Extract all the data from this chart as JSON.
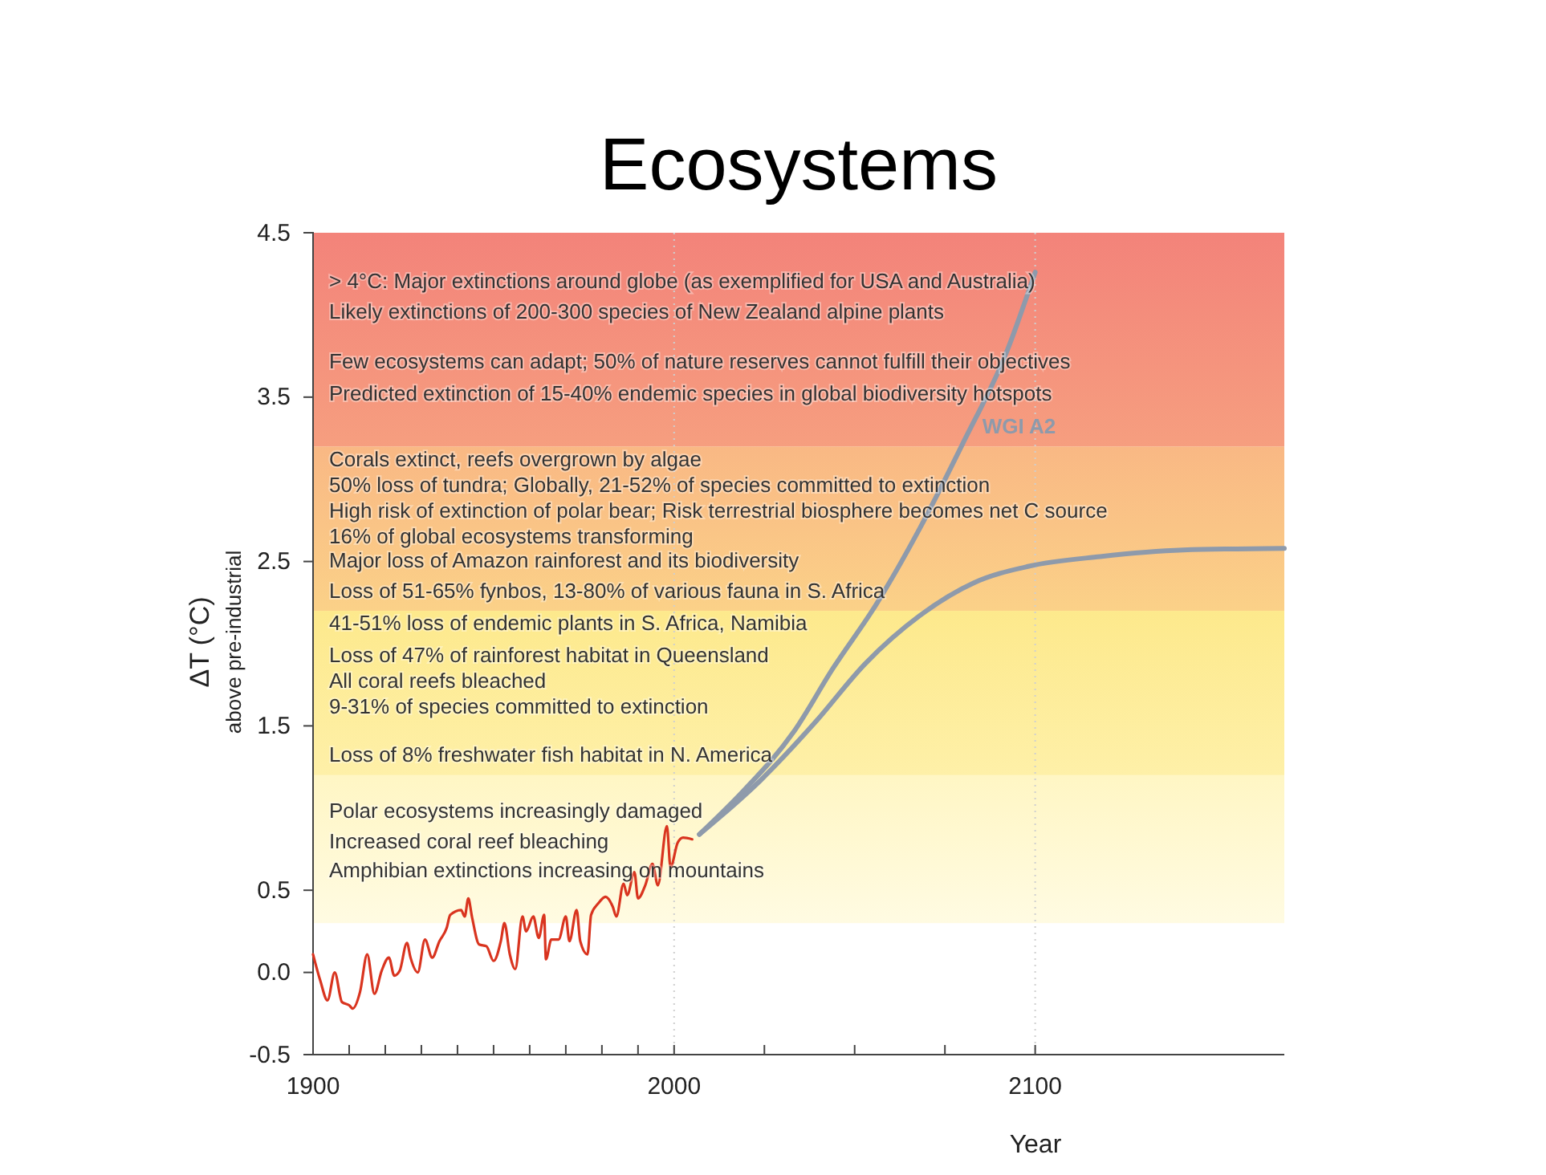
{
  "chart_data": {
    "type": "line",
    "title": "Ecosystems",
    "xlabel": "Year",
    "ylabel": "ΔT (°C)\nabove pre-industrial",
    "xlim": [
      1900,
      2169
    ],
    "ylim": [
      -0.5,
      4.5
    ],
    "xticks": [
      1900,
      {
        "value": 1910,
        "label": null
      },
      {
        "value": 1920,
        "label": null
      },
      {
        "value": 1930,
        "label": null
      },
      {
        "value": 1940,
        "label": null
      },
      {
        "value": 1950,
        "label": null
      },
      {
        "value": 1960,
        "label": null
      },
      {
        "value": 1970,
        "label": null
      },
      {
        "value": 1980,
        "label": null
      },
      {
        "value": 1990,
        "label": null
      },
      2000,
      {
        "value": 2025,
        "label": null
      },
      {
        "value": 2050,
        "label": null
      },
      {
        "value": 2075,
        "label": null
      },
      2100
    ],
    "yticks": [
      -0.5,
      {
        "value": 0,
        "label": "0.0"
      },
      0.5,
      1.5,
      2.5,
      3.5,
      4.5
    ],
    "bands": [
      {
        "axis": "y",
        "from": 0.3,
        "to": 1.2,
        "color": "#fff6c4"
      },
      {
        "axis": "y",
        "from": 1.2,
        "to": 2.2,
        "color": "#fde98c"
      },
      {
        "axis": "y",
        "from": 2.2,
        "to": 3.2,
        "color": "#f9b884"
      },
      {
        "axis": "y",
        "from": 3.2,
        "to": 4.5,
        "color": "#f3837a"
      }
    ],
    "ref_lines": [
      {
        "axis": "x",
        "value": 2000,
        "color": "#cfcfcf",
        "line_style": "dotted"
      },
      {
        "axis": "x",
        "value": 2100,
        "color": "#cfcfcf",
        "line_style": "dotted"
      }
    ],
    "series": [
      {
        "color": "#d9341f",
        "x": [
          1900,
          1902,
          1904,
          1906,
          1908,
          1910,
          1911,
          1913,
          1915,
          1917,
          1919,
          1921,
          1922.5,
          1924,
          1926,
          1927,
          1929,
          1931,
          1933,
          1935,
          1937,
          1938,
          1941,
          1942,
          1943,
          1944,
          1946,
          1948,
          1950,
          1952,
          1953,
          1954.5,
          1956,
          1958,
          1959,
          1961,
          1962.5,
          1964,
          1964.5,
          1966,
          1968,
          1970,
          1971,
          1973,
          1974,
          1976,
          1977,
          1979,
          1981,
          1983,
          1984,
          1986,
          1987,
          1989,
          1990,
          1992,
          1994,
          1995.5,
          1998,
          1999,
          2001,
          2002.5,
          2005
        ],
        "values": [
          0.11,
          -0.05,
          -0.17,
          0.0,
          -0.18,
          -0.2,
          -0.22,
          -0.12,
          0.11,
          -0.13,
          0.01,
          0.09,
          -0.02,
          0.01,
          0.18,
          0.09,
          0.0,
          0.2,
          0.09,
          0.19,
          0.27,
          0.35,
          0.38,
          0.34,
          0.45,
          0.34,
          0.17,
          0.16,
          0.07,
          0.19,
          0.3,
          0.11,
          0.02,
          0.34,
          0.25,
          0.34,
          0.21,
          0.35,
          0.08,
          0.2,
          0.2,
          0.34,
          0.19,
          0.38,
          0.19,
          0.11,
          0.35,
          0.42,
          0.46,
          0.4,
          0.34,
          0.54,
          0.47,
          0.61,
          0.45,
          0.53,
          0.66,
          0.53,
          0.89,
          0.64,
          0.79,
          0.82,
          0.81
        ]
      },
      {
        "name": "WGI A2",
        "color": "#8e9aab",
        "x": [
          2007,
          2019,
          2033,
          2044,
          2056,
          2068,
          2080,
          2092,
          2100
        ],
        "values": [
          0.84,
          1.1,
          1.46,
          1.85,
          2.24,
          2.7,
          3.22,
          3.77,
          4.26
        ]
      },
      {
        "color": "#8e9aab",
        "x": [
          2007,
          2024,
          2039,
          2053,
          2068,
          2083,
          2098,
          2118,
          2141,
          2169
        ],
        "values": [
          0.84,
          1.17,
          1.52,
          1.88,
          2.17,
          2.37,
          2.47,
          2.53,
          2.57,
          2.58
        ]
      }
    ],
    "annotations": [
      "> 4°C: Major extinctions around globe (as exemplified for USA and Australia)",
      "Likely extinctions of 200-300 species of New Zealand alpine plants",
      "Few ecosystems can adapt;  50% of nature reserves cannot fulfill their objectives",
      "Predicted extinction of 15-40% endemic species in global biodiversity hotspots",
      "Corals extinct, reefs overgrown by algae",
      "50% loss of tundra;  Globally, 21-52% of species committed to extinction",
      "High risk of extinction of polar bear;  Risk terrestrial biosphere becomes net C source",
      "16% of global ecosystems transforming",
      "Major loss of Amazon rainforest and its biodiversity",
      "Loss of 51-65% fynbos, 13-80% of various fauna in S. Africa",
      "41-51% loss of endemic plants in S. Africa, Namibia",
      "Loss of 47% of rainforest habitat in Queensland",
      "All coral reefs bleached",
      "9-31% of species committed to extinction",
      "Loss of 8% freshwater fish habitat in N. America",
      "Polar ecosystems increasingly damaged",
      "Increased coral reef bleaching",
      "Amphibian extinctions increasing on mountains"
    ]
  }
}
